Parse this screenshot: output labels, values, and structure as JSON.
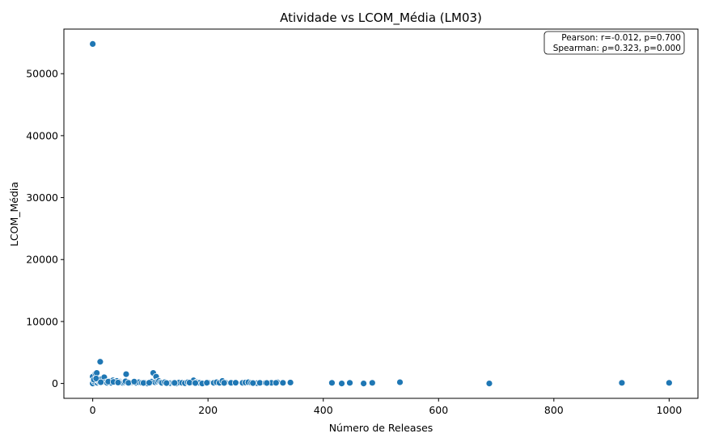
{
  "chart_data": {
    "type": "scatter",
    "title": "Atividade vs LCOM_Média (LM03)",
    "xlabel": "Número de Releases",
    "ylabel": "LCOM_Média",
    "xlim": [
      -50,
      1050
    ],
    "ylim": [
      -2400,
      57200
    ],
    "xticks": [
      0,
      200,
      400,
      600,
      800,
      1000
    ],
    "yticks": [
      0,
      10000,
      20000,
      30000,
      40000,
      50000
    ],
    "grid": false,
    "point_color": "#1f77b4",
    "annotation": {
      "line1": "Pearson: r=-0.012, p=0.700",
      "line2": "Spearman: ρ=0.323, p=0.000",
      "placement": "top-right"
    },
    "x": [
      0,
      0,
      0,
      3,
      5,
      7,
      8,
      10,
      12,
      13,
      15,
      18,
      20,
      22,
      25,
      28,
      30,
      32,
      35,
      38,
      40,
      42,
      45,
      48,
      50,
      52,
      55,
      58,
      60,
      65,
      70,
      75,
      80,
      85,
      90,
      95,
      100,
      102,
      105,
      108,
      110,
      112,
      115,
      118,
      120,
      125,
      130,
      135,
      140,
      145,
      150,
      155,
      160,
      165,
      170,
      175,
      180,
      185,
      190,
      200,
      210,
      215,
      220,
      225,
      230,
      240,
      260,
      265,
      270,
      275,
      285,
      290,
      300,
      310,
      320,
      330,
      343,
      415,
      432,
      446,
      470,
      485,
      533,
      688,
      918,
      1000,
      2,
      6,
      14,
      27,
      36,
      44,
      57,
      62,
      72,
      88,
      98,
      128,
      142,
      168,
      178,
      198,
      228,
      248,
      278,
      302,
      318
    ],
    "y": [
      54800,
      1100,
      0,
      300,
      1600,
      1700,
      100,
      400,
      200,
      3500,
      700,
      300,
      1000,
      200,
      100,
      400,
      200,
      100,
      500,
      300,
      200,
      400,
      100,
      300,
      200,
      100,
      200,
      1500,
      300,
      100,
      200,
      100,
      200,
      100,
      150,
      0,
      100,
      300,
      1700,
      200,
      1100,
      300,
      400,
      200,
      100,
      200,
      100,
      50,
      100,
      0,
      150,
      100,
      50,
      200,
      100,
      500,
      200,
      100,
      0,
      150,
      100,
      200,
      100,
      400,
      150,
      100,
      100,
      150,
      200,
      100,
      50,
      100,
      100,
      100,
      200,
      100,
      150,
      100,
      0,
      100,
      0,
      100,
      200,
      0,
      100,
      100,
      600,
      800,
      200,
      300,
      250,
      150,
      350,
      100,
      300,
      80,
      120,
      60,
      90,
      130,
      70,
      110,
      90,
      120,
      60,
      80,
      100
    ]
  }
}
